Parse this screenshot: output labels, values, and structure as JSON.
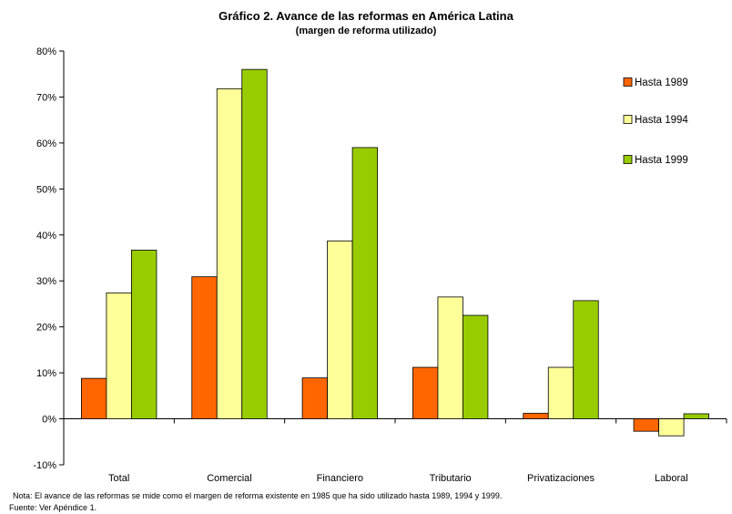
{
  "chart_data": {
    "type": "bar",
    "title": "Gráfico 2.  Avance de las reformas en América Latina",
    "subtitle": "(margen de reforma utilizado)",
    "categories": [
      "Total",
      "Comercial",
      "Financiero",
      "Tributario",
      "Privatizaciones",
      "Laboral"
    ],
    "series": [
      {
        "name": "Hasta 1989",
        "color": "#ff6600",
        "values": [
          8.8,
          30.9,
          8.9,
          11.2,
          1.2,
          -2.7
        ]
      },
      {
        "name": "Hasta 1994",
        "color": "#ffff99",
        "values": [
          27.4,
          71.8,
          38.7,
          26.5,
          11.2,
          -3.7
        ]
      },
      {
        "name": "Hasta 1999",
        "color": "#99cc00",
        "values": [
          36.7,
          76.0,
          59.0,
          22.5,
          25.7,
          1.1
        ]
      }
    ],
    "ylim": [
      -10,
      80
    ],
    "yticks": [
      -10,
      0,
      10,
      20,
      30,
      40,
      50,
      60,
      70,
      80
    ],
    "ytick_labels": [
      "-10%",
      "0%",
      "10%",
      "20%",
      "30%",
      "40%",
      "50%",
      "60%",
      "70%",
      "80%"
    ],
    "xlabel": "",
    "ylabel": "",
    "grid": false,
    "legend_position": "top-right"
  },
  "footer": {
    "note": "Nota: El avance de las reformas se mide como el margen de reforma existente en 1985 que ha sido utilizado hasta 1989, 1994 y 1999.",
    "source": "Fuente: Ver Apéndice 1."
  }
}
